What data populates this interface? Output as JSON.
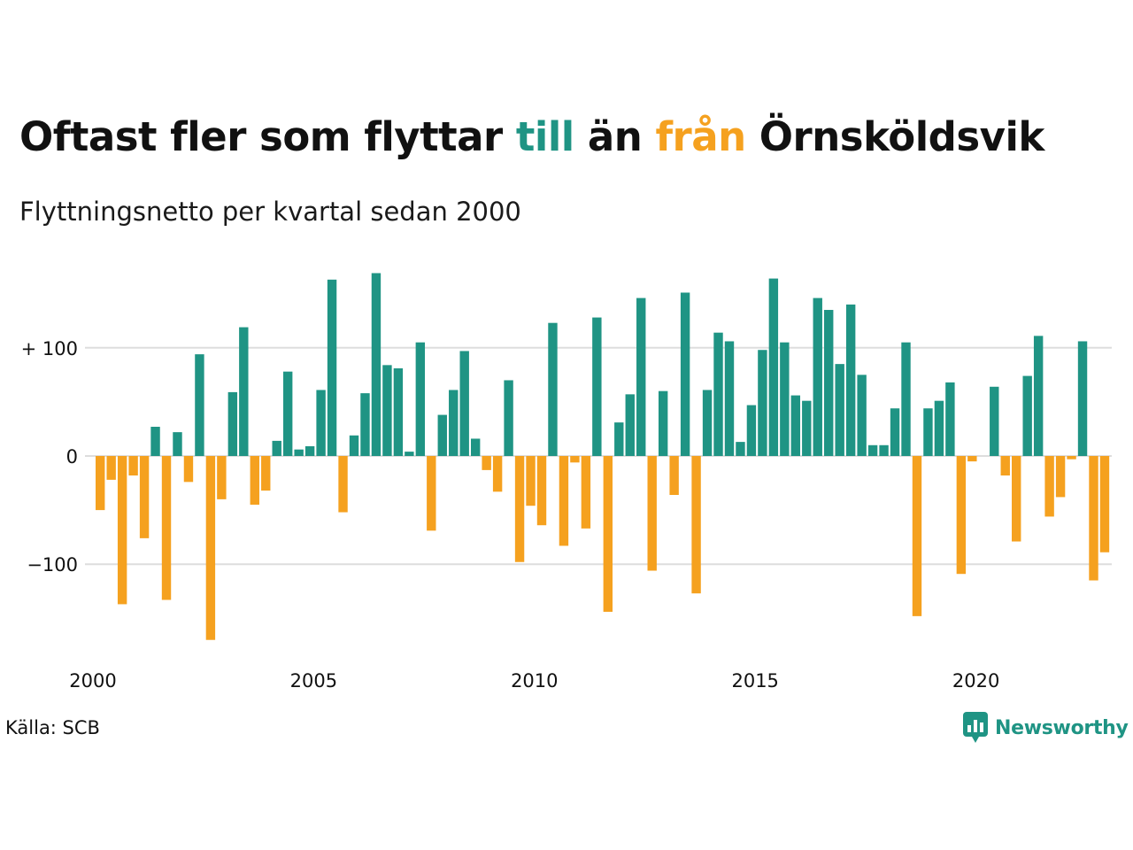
{
  "header": {
    "title_parts": [
      "Oftast fler som flyttar ",
      "till",
      " än ",
      "från",
      " Örnsköldsvik"
    ],
    "subtitle": "Flyttningsnetto per kvartal sedan 2000"
  },
  "colors": {
    "positive": "#1f9484",
    "negative": "#f5a11f",
    "grid": "#dddddd",
    "text": "#111111",
    "brand": "#1f9484"
  },
  "footer": {
    "source": "Källa: SCB",
    "brand": "Newsworthy",
    "brand_icon": "newsworthy-logo-icon"
  },
  "chart_data": {
    "type": "bar",
    "x_tick_labels": [
      "2000",
      "2005",
      "2010",
      "2015",
      "2020"
    ],
    "y_tick_labels": [
      "+ 100",
      "0",
      "−100"
    ],
    "yticks": [
      100,
      0,
      -100
    ],
    "ylim": [
      -180,
      175
    ],
    "grid": true,
    "legend": "none",
    "series": [
      {
        "values": [
          -50,
          -22,
          -137,
          -18,
          -76,
          27,
          -133,
          22,
          -24,
          94,
          -170,
          -40,
          59,
          119,
          -45,
          -32,
          14,
          78,
          6,
          9,
          61,
          163,
          -52,
          19,
          58,
          169,
          84,
          81,
          4,
          105,
          -69,
          38,
          61,
          97,
          16,
          -13,
          -33,
          70,
          -98,
          -46,
          -64,
          123,
          -83,
          -6,
          -67,
          128,
          -144,
          31,
          57,
          146,
          -106,
          60,
          -36,
          151,
          -127,
          61,
          114,
          106,
          13,
          47,
          98,
          164,
          105,
          56,
          51,
          146,
          135,
          85,
          140,
          75,
          10,
          10,
          44,
          105,
          -148,
          44,
          51,
          68,
          -109,
          -5,
          0,
          64,
          -18,
          -79,
          74,
          111,
          -56,
          -38,
          -3,
          106,
          -115,
          -89
        ]
      }
    ]
  }
}
